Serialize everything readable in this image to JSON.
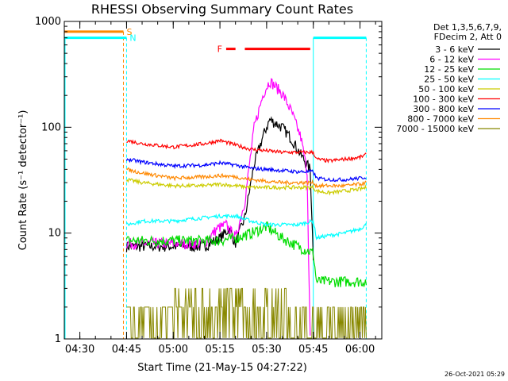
{
  "chart_data": {
    "type": "line",
    "title": "RHESSI Observing Summary Count Rates",
    "xlabel": "Start Time (21-May-15 04:27:22)",
    "ylabel": "Count Rate (s⁻¹ detector⁻¹)",
    "yscale": "log",
    "ylim": [
      1,
      1000
    ],
    "xlim": [
      "04:25",
      "06:07"
    ],
    "x_ticks": [
      "04:30",
      "04:45",
      "05:00",
      "05:15",
      "05:30",
      "05:45",
      "06:00"
    ],
    "y_ticks": [
      "1",
      "10",
      "100",
      "1000"
    ],
    "legend_header": [
      "Det 1,3,5,6,7,9,",
      "FDecim 2, Att 0"
    ],
    "legend_position": "top-right outside plot",
    "series": [
      {
        "name": "3 - 6 keV",
        "color": "#000000",
        "x": [
          "04:45",
          "05:00",
          "05:10",
          "05:15",
          "05:18",
          "05:20",
          "05:23",
          "05:26",
          "05:29",
          "05:31",
          "05:35",
          "05:38",
          "05:41",
          "05:44",
          "05:45"
        ],
        "y": [
          7.5,
          7.5,
          7.5,
          9,
          11,
          8,
          14,
          45,
          85,
          118,
          100,
          78,
          55,
          40,
          6
        ]
      },
      {
        "name": "6 - 12 keV",
        "color": "#ff00ff",
        "x": [
          "04:45",
          "05:00",
          "05:10",
          "05:14",
          "05:17",
          "05:20",
          "05:23",
          "05:26",
          "05:29",
          "05:31",
          "05:35",
          "05:38",
          "05:41",
          "05:43",
          "05:44"
        ],
        "y": [
          8,
          8,
          8,
          11,
          12,
          9,
          20,
          100,
          210,
          275,
          210,
          140,
          80,
          38,
          1
        ]
      },
      {
        "name": "12 - 25 keV",
        "color": "#00dd00",
        "x": [
          "04:45",
          "05:00",
          "05:10",
          "05:15",
          "05:20",
          "05:25",
          "05:30",
          "05:35",
          "05:40",
          "05:45",
          "05:46",
          "05:50",
          "05:55",
          "06:00",
          "06:02"
        ],
        "y": [
          8.5,
          8.5,
          8.5,
          8.5,
          9,
          10,
          11.5,
          9,
          7.5,
          6.5,
          3.5,
          3.5,
          3.5,
          3.5,
          3.5
        ]
      },
      {
        "name": "25 - 50 keV",
        "color": "#00ffff",
        "x": [
          "04:45",
          "04:50",
          "05:00",
          "05:10",
          "05:15",
          "05:20",
          "05:25",
          "05:30",
          "05:35",
          "05:40",
          "05:45",
          "05:46",
          "05:50",
          "05:55",
          "06:00",
          "06:02"
        ],
        "y": [
          12,
          13,
          13,
          14,
          14.5,
          14.5,
          13,
          12,
          12,
          12,
          13,
          9,
          9.5,
          10,
          11,
          12
        ]
      },
      {
        "name": "50 - 100 keV",
        "color": "#cccc00",
        "x": [
          "04:45",
          "04:50",
          "05:00",
          "05:10",
          "05:15",
          "05:20",
          "05:25",
          "05:30",
          "05:35",
          "05:40",
          "05:45",
          "05:46",
          "05:50",
          "05:55",
          "06:00",
          "06:02"
        ],
        "y": [
          32,
          30,
          28,
          28,
          29,
          28,
          27,
          27,
          27,
          27,
          27,
          25,
          24,
          25,
          26,
          27
        ]
      },
      {
        "name": "100 - 300 keV",
        "color": "#ff0000",
        "x": [
          "04:45",
          "04:50",
          "05:00",
          "05:10",
          "05:15",
          "05:20",
          "05:25",
          "05:30",
          "05:35",
          "05:40",
          "05:45",
          "05:46",
          "05:50",
          "05:55",
          "06:00",
          "06:02"
        ],
        "y": [
          75,
          70,
          65,
          70,
          75,
          68,
          62,
          60,
          58,
          58,
          58,
          50,
          48,
          50,
          52,
          55
        ]
      },
      {
        "name": "300 - 800 keV",
        "color": "#0000ff",
        "x": [
          "04:45",
          "04:50",
          "05:00",
          "05:10",
          "05:15",
          "05:20",
          "05:25",
          "05:30",
          "05:35",
          "05:40",
          "05:45",
          "05:46",
          "05:50",
          "05:55",
          "06:00",
          "06:02"
        ],
        "y": [
          50,
          47,
          43,
          44,
          46,
          44,
          41,
          40,
          39,
          38,
          38,
          33,
          32,
          32,
          33,
          34
        ]
      },
      {
        "name": "800 - 7000 keV",
        "color": "#ff8800",
        "x": [
          "04:45",
          "04:50",
          "05:00",
          "05:10",
          "05:15",
          "05:20",
          "05:25",
          "05:30",
          "05:35",
          "05:40",
          "05:45",
          "05:46",
          "05:50",
          "05:55",
          "06:00",
          "06:02"
        ],
        "y": [
          40,
          37,
          33,
          34,
          35,
          34,
          32,
          31,
          30,
          30,
          30,
          28,
          28,
          28,
          29,
          30
        ]
      },
      {
        "name": "7000 - 15000 keV",
        "color": "#888800",
        "x": [
          "04:45",
          "05:00",
          "05:06",
          "05:10",
          "05:15",
          "05:20",
          "05:25",
          "05:30",
          "05:35",
          "05:40",
          "05:45",
          "05:46",
          "05:50",
          "05:55",
          "06:00",
          "06:02"
        ],
        "y": [
          2,
          2,
          2,
          3,
          2.5,
          2,
          3,
          2,
          2.5,
          2,
          2,
          2,
          2,
          2,
          2,
          2
        ]
      }
    ],
    "flags": [
      {
        "label": "S",
        "color": "#ff8800",
        "y": 800,
        "x_ranges": [
          [
            "04:25",
            "04:44"
          ]
        ],
        "marker_time": "04:44"
      },
      {
        "label": "N",
        "color": "#00ffff",
        "y": 700,
        "x_ranges": [
          [
            "04:25",
            "04:45"
          ],
          [
            "05:45",
            "06:02"
          ]
        ],
        "marker_times": [
          "04:45",
          "05:45",
          "06:02"
        ]
      },
      {
        "label": "F",
        "color": "#ff0000",
        "y": 550,
        "x_ranges": [
          [
            "05:17",
            "05:20"
          ],
          [
            "05:23",
            "05:44"
          ]
        ]
      }
    ],
    "timestamp": "26-Oct-2021 05:29"
  }
}
